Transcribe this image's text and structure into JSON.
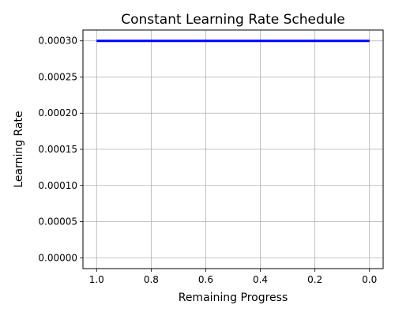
{
  "chart_data": {
    "type": "line",
    "title": "Constant Learning Rate Schedule",
    "xlabel": "Remaining Progress",
    "ylabel": "Learning Rate",
    "xlim": [
      1.05,
      -0.05
    ],
    "ylim": [
      -1.5e-05,
      0.000315
    ],
    "x_inverted": true,
    "xticks": [
      1.0,
      0.8,
      0.6,
      0.4,
      0.2,
      0.0
    ],
    "xtick_labels": [
      "1.0",
      "0.8",
      "0.6",
      "0.4",
      "0.2",
      "0.0"
    ],
    "yticks": [
      0.0,
      5e-05,
      0.0001,
      0.00015,
      0.0002,
      0.00025,
      0.0003
    ],
    "ytick_labels": [
      "0.00000",
      "0.00005",
      "0.00010",
      "0.00015",
      "0.00020",
      "0.00025",
      "0.00030"
    ],
    "grid": true,
    "series": [
      {
        "color": "#0000ff",
        "x": [
          1.0,
          0.0
        ],
        "y": [
          0.0003,
          0.0003
        ]
      }
    ]
  }
}
